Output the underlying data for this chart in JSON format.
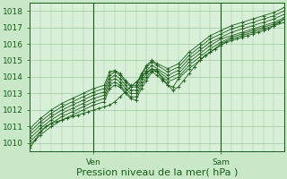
{
  "title": "",
  "xlabel": "Pression niveau de la mer( hPa )",
  "ylabel": "",
  "bg_color": "#c8e8c8",
  "plot_bg_color": "#d8efd8",
  "grid_color": "#a0c8a0",
  "line_color": "#1a5c1a",
  "marker_color": "#1a5c1a",
  "ylim": [
    1009.5,
    1018.5
  ],
  "yticks": [
    1010,
    1011,
    1012,
    1013,
    1014,
    1015,
    1016,
    1017,
    1018
  ],
  "xlabel_fontsize": 8,
  "tick_fontsize": 6.5,
  "xtick_labels": [
    "Ven",
    "Sam"
  ],
  "xtick_positions": [
    24,
    72
  ],
  "vline_positions": [
    24,
    72
  ],
  "xlim": [
    0,
    96
  ],
  "series": [
    {
      "pts": [
        [
          0,
          1009.7
        ],
        [
          2,
          1010.2
        ],
        [
          4,
          1010.7
        ],
        [
          6,
          1011.0
        ],
        [
          8,
          1011.2
        ],
        [
          10,
          1011.3
        ],
        [
          12,
          1011.4
        ],
        [
          14,
          1011.5
        ],
        [
          16,
          1011.6
        ],
        [
          18,
          1011.7
        ],
        [
          20,
          1011.8
        ],
        [
          22,
          1011.9
        ],
        [
          24,
          1012.0
        ],
        [
          26,
          1012.1
        ],
        [
          28,
          1012.2
        ],
        [
          30,
          1012.3
        ],
        [
          32,
          1012.5
        ],
        [
          34,
          1012.8
        ],
        [
          36,
          1013.1
        ],
        [
          38,
          1013.4
        ],
        [
          40,
          1013.7
        ],
        [
          42,
          1014.0
        ],
        [
          44,
          1014.3
        ],
        [
          46,
          1014.5
        ],
        [
          48,
          1014.3
        ],
        [
          50,
          1013.9
        ],
        [
          52,
          1013.5
        ],
        [
          54,
          1013.2
        ],
        [
          56,
          1013.4
        ],
        [
          58,
          1013.8
        ],
        [
          60,
          1014.2
        ],
        [
          62,
          1014.6
        ],
        [
          64,
          1015.0
        ],
        [
          66,
          1015.3
        ],
        [
          68,
          1015.5
        ],
        [
          70,
          1015.7
        ],
        [
          72,
          1015.9
        ],
        [
          74,
          1016.1
        ],
        [
          76,
          1016.2
        ],
        [
          78,
          1016.3
        ],
        [
          80,
          1016.4
        ],
        [
          82,
          1016.5
        ],
        [
          84,
          1016.6
        ],
        [
          86,
          1016.7
        ],
        [
          88,
          1016.8
        ],
        [
          90,
          1016.9
        ],
        [
          92,
          1017.1
        ],
        [
          94,
          1017.3
        ],
        [
          96,
          1017.5
        ]
      ]
    },
    {
      "pts": [
        [
          0,
          1009.9
        ],
        [
          4,
          1010.5
        ],
        [
          8,
          1011.0
        ],
        [
          12,
          1011.4
        ],
        [
          16,
          1011.7
        ],
        [
          20,
          1012.0
        ],
        [
          24,
          1012.3
        ],
        [
          28,
          1012.5
        ],
        [
          30,
          1013.3
        ],
        [
          32,
          1013.5
        ],
        [
          34,
          1013.4
        ],
        [
          36,
          1013.0
        ],
        [
          38,
          1012.7
        ],
        [
          40,
          1012.6
        ],
        [
          42,
          1013.3
        ],
        [
          44,
          1013.8
        ],
        [
          46,
          1014.3
        ],
        [
          48,
          1014.1
        ],
        [
          50,
          1013.8
        ],
        [
          52,
          1013.5
        ],
        [
          54,
          1013.4
        ],
        [
          56,
          1013.9
        ],
        [
          60,
          1014.5
        ],
        [
          64,
          1015.0
        ],
        [
          68,
          1015.5
        ],
        [
          72,
          1016.0
        ],
        [
          76,
          1016.3
        ],
        [
          80,
          1016.5
        ],
        [
          84,
          1016.7
        ],
        [
          88,
          1016.9
        ],
        [
          92,
          1017.1
        ],
        [
          96,
          1017.3
        ]
      ]
    },
    {
      "pts": [
        [
          0,
          1010.1
        ],
        [
          4,
          1010.7
        ],
        [
          8,
          1011.2
        ],
        [
          12,
          1011.6
        ],
        [
          16,
          1011.9
        ],
        [
          20,
          1012.2
        ],
        [
          24,
          1012.5
        ],
        [
          28,
          1012.7
        ],
        [
          30,
          1013.5
        ],
        [
          32,
          1013.7
        ],
        [
          34,
          1013.5
        ],
        [
          36,
          1013.1
        ],
        [
          38,
          1012.8
        ],
        [
          40,
          1012.8
        ],
        [
          42,
          1013.5
        ],
        [
          44,
          1014.0
        ],
        [
          46,
          1014.4
        ],
        [
          48,
          1014.3
        ],
        [
          52,
          1013.7
        ],
        [
          56,
          1014.0
        ],
        [
          60,
          1014.7
        ],
        [
          64,
          1015.2
        ],
        [
          68,
          1015.7
        ],
        [
          72,
          1016.1
        ],
        [
          76,
          1016.4
        ],
        [
          80,
          1016.6
        ],
        [
          84,
          1016.8
        ],
        [
          88,
          1017.0
        ],
        [
          92,
          1017.2
        ],
        [
          96,
          1017.5
        ]
      ]
    },
    {
      "pts": [
        [
          0,
          1010.3
        ],
        [
          4,
          1010.9
        ],
        [
          8,
          1011.4
        ],
        [
          12,
          1011.8
        ],
        [
          16,
          1012.1
        ],
        [
          20,
          1012.4
        ],
        [
          24,
          1012.7
        ],
        [
          28,
          1012.9
        ],
        [
          30,
          1013.7
        ],
        [
          32,
          1013.9
        ],
        [
          34,
          1013.7
        ],
        [
          36,
          1013.3
        ],
        [
          38,
          1013.0
        ],
        [
          40,
          1013.0
        ],
        [
          42,
          1013.7
        ],
        [
          44,
          1014.2
        ],
        [
          46,
          1014.5
        ],
        [
          48,
          1014.4
        ],
        [
          52,
          1013.9
        ],
        [
          56,
          1014.2
        ],
        [
          60,
          1014.9
        ],
        [
          64,
          1015.4
        ],
        [
          68,
          1015.9
        ],
        [
          72,
          1016.3
        ],
        [
          76,
          1016.5
        ],
        [
          80,
          1016.7
        ],
        [
          84,
          1016.9
        ],
        [
          88,
          1017.1
        ],
        [
          92,
          1017.3
        ],
        [
          96,
          1017.6
        ]
      ]
    },
    {
      "pts": [
        [
          0,
          1010.5
        ],
        [
          4,
          1011.1
        ],
        [
          8,
          1011.6
        ],
        [
          12,
          1012.0
        ],
        [
          16,
          1012.3
        ],
        [
          20,
          1012.6
        ],
        [
          24,
          1012.9
        ],
        [
          28,
          1013.1
        ],
        [
          30,
          1013.9
        ],
        [
          32,
          1014.1
        ],
        [
          34,
          1013.9
        ],
        [
          36,
          1013.5
        ],
        [
          38,
          1013.2
        ],
        [
          40,
          1013.2
        ],
        [
          42,
          1013.9
        ],
        [
          44,
          1014.4
        ],
        [
          46,
          1014.7
        ],
        [
          48,
          1014.5
        ],
        [
          52,
          1014.1
        ],
        [
          56,
          1014.4
        ],
        [
          60,
          1015.1
        ],
        [
          64,
          1015.6
        ],
        [
          68,
          1016.1
        ],
        [
          72,
          1016.4
        ],
        [
          76,
          1016.7
        ],
        [
          80,
          1016.9
        ],
        [
          84,
          1017.1
        ],
        [
          88,
          1017.3
        ],
        [
          92,
          1017.5
        ],
        [
          96,
          1017.8
        ]
      ]
    },
    {
      "pts": [
        [
          0,
          1010.7
        ],
        [
          4,
          1011.3
        ],
        [
          8,
          1011.8
        ],
        [
          12,
          1012.2
        ],
        [
          16,
          1012.5
        ],
        [
          20,
          1012.8
        ],
        [
          24,
          1013.1
        ],
        [
          28,
          1013.3
        ],
        [
          30,
          1014.1
        ],
        [
          32,
          1014.3
        ],
        [
          34,
          1014.1
        ],
        [
          36,
          1013.7
        ],
        [
          38,
          1013.4
        ],
        [
          40,
          1013.4
        ],
        [
          42,
          1014.1
        ],
        [
          44,
          1014.6
        ],
        [
          46,
          1014.9
        ],
        [
          48,
          1014.7
        ],
        [
          52,
          1014.3
        ],
        [
          56,
          1014.6
        ],
        [
          60,
          1015.3
        ],
        [
          64,
          1015.8
        ],
        [
          68,
          1016.3
        ],
        [
          72,
          1016.6
        ],
        [
          76,
          1016.9
        ],
        [
          80,
          1017.1
        ],
        [
          84,
          1017.3
        ],
        [
          88,
          1017.5
        ],
        [
          92,
          1017.7
        ],
        [
          96,
          1018.0
        ]
      ]
    },
    {
      "pts": [
        [
          0,
          1010.9
        ],
        [
          4,
          1011.5
        ],
        [
          8,
          1012.0
        ],
        [
          12,
          1012.4
        ],
        [
          16,
          1012.7
        ],
        [
          20,
          1013.0
        ],
        [
          24,
          1013.3
        ],
        [
          28,
          1013.5
        ],
        [
          30,
          1014.3
        ],
        [
          32,
          1014.4
        ],
        [
          34,
          1014.2
        ],
        [
          36,
          1013.8
        ],
        [
          38,
          1013.5
        ],
        [
          40,
          1013.5
        ],
        [
          42,
          1014.2
        ],
        [
          44,
          1014.7
        ],
        [
          46,
          1015.0
        ],
        [
          48,
          1014.8
        ],
        [
          52,
          1014.5
        ],
        [
          56,
          1014.8
        ],
        [
          60,
          1015.5
        ],
        [
          64,
          1016.0
        ],
        [
          68,
          1016.5
        ],
        [
          72,
          1016.8
        ],
        [
          76,
          1017.1
        ],
        [
          80,
          1017.3
        ],
        [
          84,
          1017.5
        ],
        [
          88,
          1017.7
        ],
        [
          92,
          1017.9
        ],
        [
          96,
          1018.2
        ]
      ]
    }
  ]
}
